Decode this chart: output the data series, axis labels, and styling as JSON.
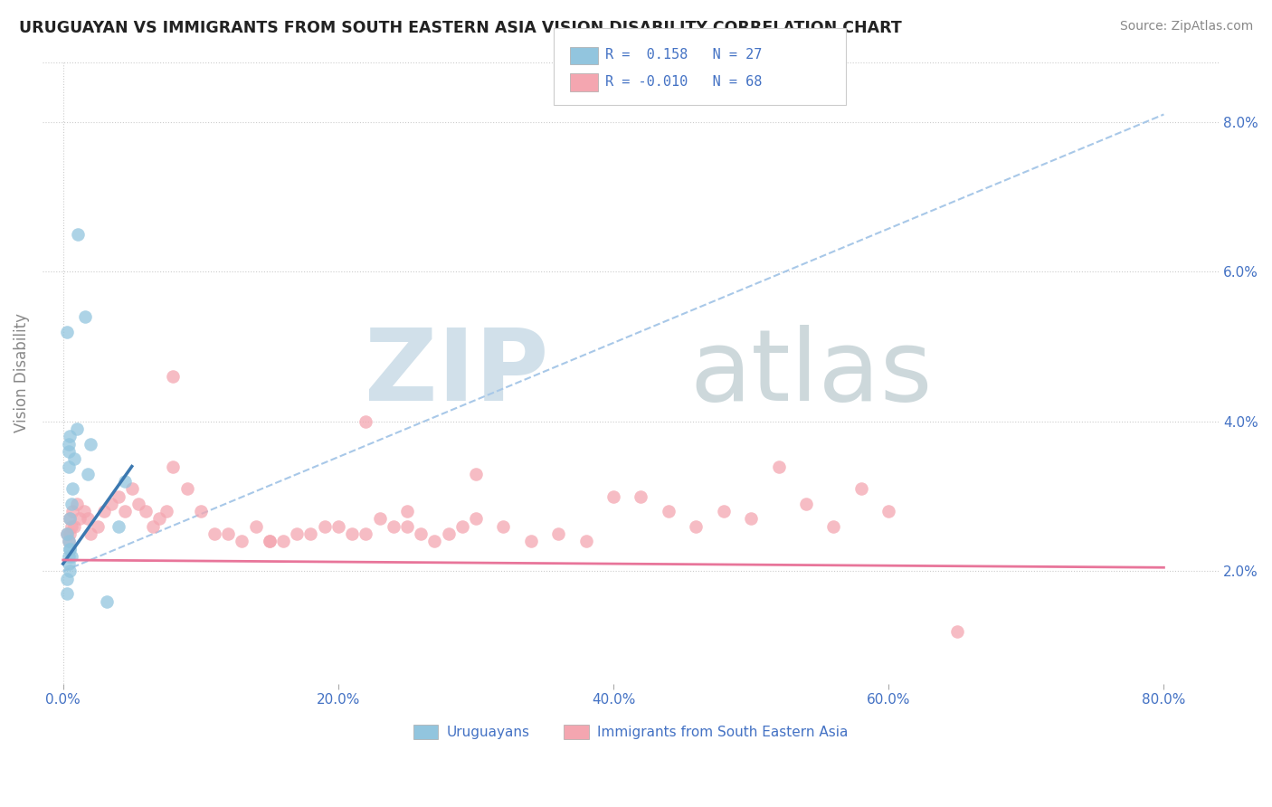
{
  "title": "URUGUAYAN VS IMMIGRANTS FROM SOUTH EASTERN ASIA VISION DISABILITY CORRELATION CHART",
  "source": "Source: ZipAtlas.com",
  "xlabel_vals": [
    0.0,
    20.0,
    40.0,
    60.0,
    80.0
  ],
  "ylabel": "Vision Disability",
  "ylabel_vals": [
    2.0,
    4.0,
    6.0,
    8.0
  ],
  "xlim": [
    -1.5,
    84.0
  ],
  "ylim": [
    0.5,
    8.8
  ],
  "blue_color": "#92c5de",
  "pink_color": "#f4a6b0",
  "blue_line_color": "#3b78b0",
  "pink_line_color": "#e8759a",
  "dashed_line_color": "#a8c8e8",
  "tick_color": "#4472C4",
  "ylabel_color": "#888888",
  "title_color": "#222222",
  "source_color": "#888888",
  "uruguayan_x": [
    0.4,
    1.1,
    1.6,
    0.3,
    0.5,
    0.4,
    0.6,
    0.5,
    0.3,
    0.4,
    0.5,
    0.6,
    0.4,
    0.5,
    0.3,
    0.4,
    1.8,
    2.0,
    0.5,
    0.4,
    0.3,
    1.0,
    0.7,
    0.8,
    4.0,
    4.5,
    3.2
  ],
  "uruguayan_y": [
    3.6,
    6.5,
    5.4,
    5.2,
    3.8,
    3.7,
    2.9,
    2.7,
    2.5,
    2.4,
    2.3,
    2.2,
    2.1,
    2.0,
    1.9,
    3.4,
    3.3,
    3.7,
    2.3,
    2.2,
    1.7,
    3.9,
    3.1,
    3.5,
    2.6,
    3.2,
    1.6
  ],
  "sea_x": [
    0.3,
    0.5,
    0.4,
    0.6,
    0.5,
    0.7,
    0.8,
    1.0,
    1.2,
    1.5,
    1.8,
    2.0,
    2.5,
    3.0,
    3.5,
    4.0,
    4.5,
    5.0,
    5.5,
    6.0,
    6.5,
    7.0,
    7.5,
    8.0,
    9.0,
    10.0,
    11.0,
    12.0,
    13.0,
    14.0,
    15.0,
    16.0,
    17.0,
    18.0,
    19.0,
    20.0,
    21.0,
    22.0,
    23.0,
    24.0,
    25.0,
    26.0,
    27.0,
    28.0,
    29.0,
    30.0,
    32.0,
    34.0,
    36.0,
    38.0,
    40.0,
    42.0,
    44.0,
    46.0,
    48.0,
    50.0,
    52.0,
    54.0,
    56.0,
    58.0,
    60.0,
    30.0,
    22.0,
    8.0,
    15.0,
    25.0,
    65.0
  ],
  "sea_y": [
    2.5,
    2.7,
    2.4,
    2.6,
    2.5,
    2.8,
    2.6,
    2.9,
    2.7,
    2.8,
    2.7,
    2.5,
    2.6,
    2.8,
    2.9,
    3.0,
    2.8,
    3.1,
    2.9,
    2.8,
    2.6,
    2.7,
    2.8,
    3.4,
    3.1,
    2.8,
    2.5,
    2.5,
    2.4,
    2.6,
    2.4,
    2.4,
    2.5,
    2.5,
    2.6,
    2.6,
    2.5,
    2.5,
    2.7,
    2.6,
    2.6,
    2.5,
    2.4,
    2.5,
    2.6,
    2.7,
    2.6,
    2.4,
    2.5,
    2.4,
    3.0,
    3.0,
    2.8,
    2.6,
    2.8,
    2.7,
    3.4,
    2.9,
    2.6,
    3.1,
    2.8,
    3.3,
    4.0,
    4.6,
    2.4,
    2.8,
    1.2
  ],
  "dashed_x0": 0.0,
  "dashed_y0": 2.0,
  "dashed_x1": 80.0,
  "dashed_y1": 8.1,
  "blue_trend_x0": 0.0,
  "blue_trend_y0": 2.1,
  "blue_trend_x1": 5.0,
  "blue_trend_y1": 3.4,
  "pink_trend_x0": 0.0,
  "pink_trend_y0": 2.15,
  "pink_trend_x1": 80.0,
  "pink_trend_y1": 2.05
}
